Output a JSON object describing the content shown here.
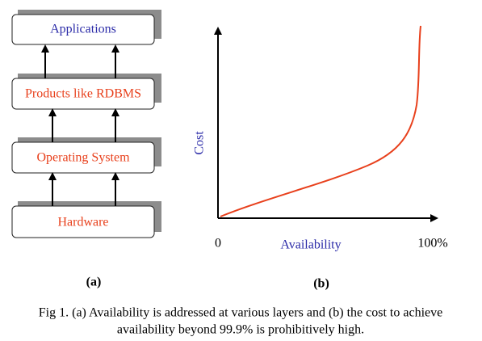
{
  "layers": [
    "Applications",
    "Products like RDBMS",
    "Operating System",
    "Hardware"
  ],
  "panel_a": {
    "label": "(a)"
  },
  "panel_b": {
    "label": "(b)",
    "y_axis_label": "Cost",
    "x_axis_label": "Availability",
    "x_start_label": "0",
    "x_end_label": "100%"
  },
  "caption": [
    "Fig 1. (a) Availability is addressed at various layers and (b) the cost to achieve",
    "availability beyond 99.9% is prohibitively high."
  ]
}
